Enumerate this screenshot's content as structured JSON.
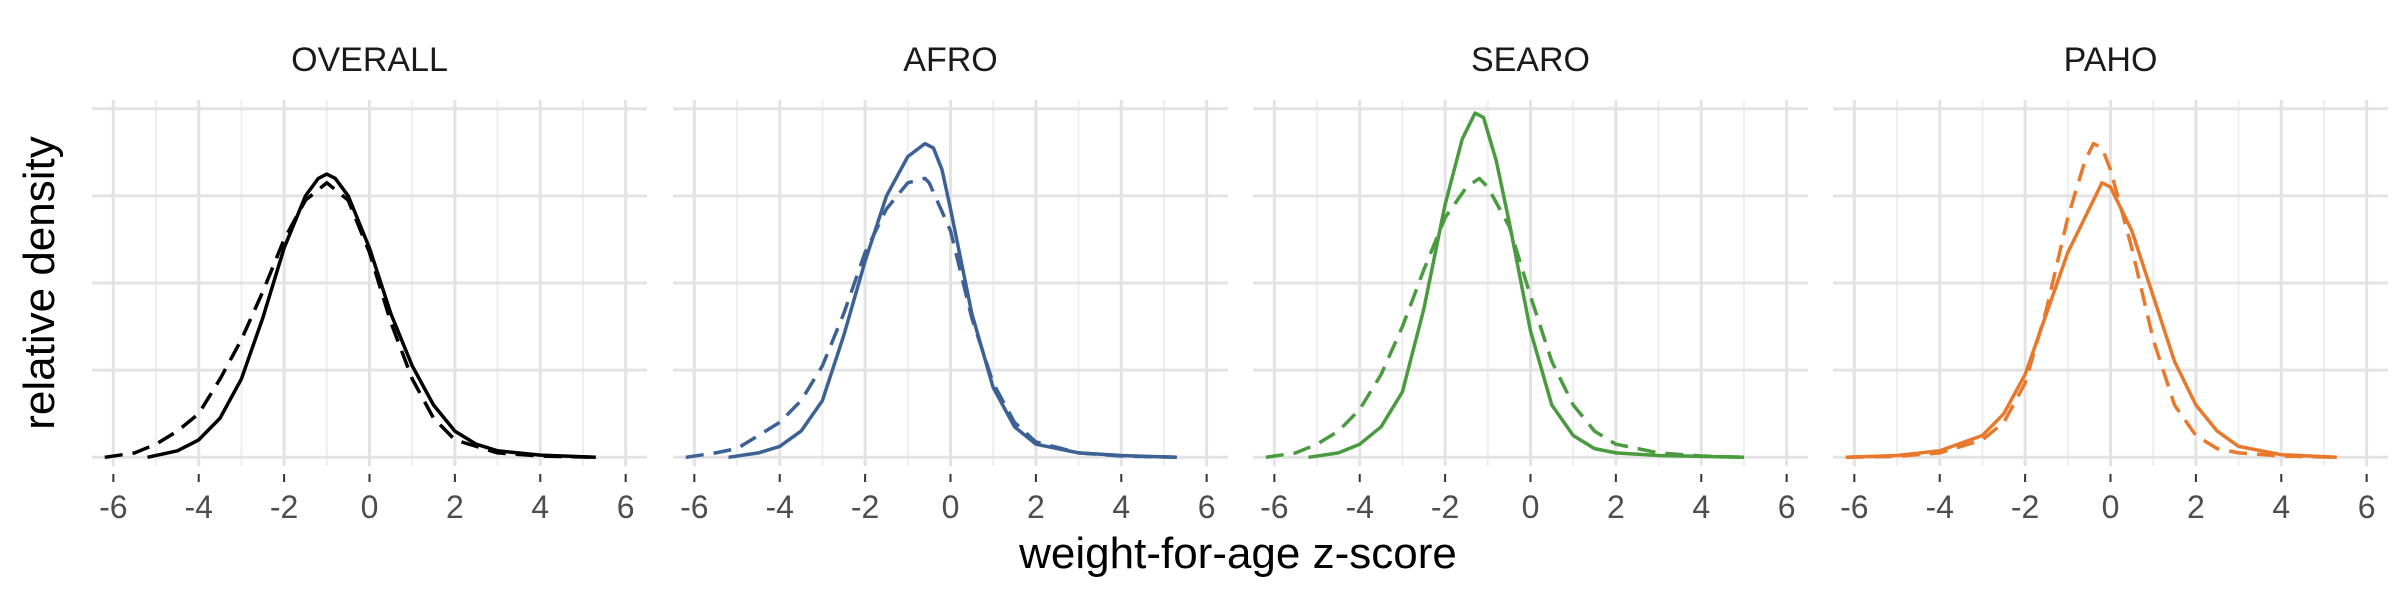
{
  "chart_data": {
    "type": "line",
    "xlabel": "weight-for-age z-score",
    "ylabel": "relative density",
    "xlim": [
      -6.5,
      6.5
    ],
    "x_ticks": [
      -6,
      -4,
      -2,
      0,
      2,
      4,
      6
    ],
    "x_tick_labels": [
      "-6",
      "-4",
      "-2",
      "0",
      "2",
      "4",
      "6"
    ],
    "ylim": [
      -0.02,
      0.82
    ],
    "y_ticks": [
      0,
      0.2,
      0.4,
      0.6,
      0.8
    ],
    "grid": true,
    "line_styles": [
      "solid",
      "dashed"
    ],
    "panels": [
      {
        "title": "OVERALL",
        "color": "#000000",
        "series": [
          {
            "style": "solid",
            "points": [
              [
                -5.2,
                0
              ],
              [
                -4.5,
                0.015
              ],
              [
                -4,
                0.04
              ],
              [
                -3.5,
                0.09
              ],
              [
                -3,
                0.18
              ],
              [
                -2.5,
                0.32
              ],
              [
                -2,
                0.48
              ],
              [
                -1.5,
                0.6
              ],
              [
                -1.2,
                0.64
              ],
              [
                -1,
                0.65
              ],
              [
                -0.8,
                0.64
              ],
              [
                -0.5,
                0.6
              ],
              [
                0,
                0.48
              ],
              [
                0.5,
                0.33
              ],
              [
                1,
                0.21
              ],
              [
                1.5,
                0.12
              ],
              [
                2,
                0.06
              ],
              [
                2.5,
                0.03
              ],
              [
                3,
                0.015
              ],
              [
                4,
                0.005
              ],
              [
                5.3,
                0
              ]
            ]
          },
          {
            "style": "dashed",
            "points": [
              [
                -6.2,
                0
              ],
              [
                -5.5,
                0.01
              ],
              [
                -5,
                0.03
              ],
              [
                -4.5,
                0.06
              ],
              [
                -4,
                0.1
              ],
              [
                -3.5,
                0.18
              ],
              [
                -3,
                0.27
              ],
              [
                -2.5,
                0.38
              ],
              [
                -2,
                0.5
              ],
              [
                -1.5,
                0.59
              ],
              [
                -1,
                0.63
              ],
              [
                -0.5,
                0.59
              ],
              [
                0,
                0.47
              ],
              [
                0.5,
                0.31
              ],
              [
                1,
                0.18
              ],
              [
                1.5,
                0.09
              ],
              [
                2,
                0.04
              ],
              [
                3,
                0.01
              ],
              [
                4,
                0.003
              ],
              [
                5.3,
                0
              ]
            ]
          }
        ]
      },
      {
        "title": "AFRO",
        "color": "#3d6194",
        "series": [
          {
            "style": "solid",
            "points": [
              [
                -5.2,
                0
              ],
              [
                -4.5,
                0.01
              ],
              [
                -4,
                0.025
              ],
              [
                -3.5,
                0.06
              ],
              [
                -3,
                0.13
              ],
              [
                -2.5,
                0.28
              ],
              [
                -2,
                0.45
              ],
              [
                -1.5,
                0.6
              ],
              [
                -1,
                0.69
              ],
              [
                -0.6,
                0.72
              ],
              [
                -0.4,
                0.71
              ],
              [
                -0.2,
                0.66
              ],
              [
                0,
                0.57
              ],
              [
                0.5,
                0.33
              ],
              [
                1,
                0.16
              ],
              [
                1.5,
                0.07
              ],
              [
                2,
                0.03
              ],
              [
                3,
                0.01
              ],
              [
                4,
                0.004
              ],
              [
                5.3,
                0
              ]
            ]
          },
          {
            "style": "dashed",
            "points": [
              [
                -6.2,
                0
              ],
              [
                -5.5,
                0.01
              ],
              [
                -5,
                0.02
              ],
              [
                -4.5,
                0.05
              ],
              [
                -4,
                0.08
              ],
              [
                -3.5,
                0.13
              ],
              [
                -3,
                0.21
              ],
              [
                -2.5,
                0.33
              ],
              [
                -2,
                0.47
              ],
              [
                -1.5,
                0.57
              ],
              [
                -1,
                0.63
              ],
              [
                -0.6,
                0.64
              ],
              [
                -0.5,
                0.63
              ],
              [
                0,
                0.52
              ],
              [
                0.5,
                0.32
              ],
              [
                1,
                0.17
              ],
              [
                1.5,
                0.08
              ],
              [
                2,
                0.035
              ],
              [
                3,
                0.01
              ],
              [
                4,
                0.003
              ],
              [
                5.3,
                0
              ]
            ]
          }
        ]
      },
      {
        "title": "SEARO",
        "color": "#4a9a3f",
        "series": [
          {
            "style": "solid",
            "points": [
              [
                -5.2,
                0
              ],
              [
                -4.5,
                0.01
              ],
              [
                -4,
                0.03
              ],
              [
                -3.5,
                0.07
              ],
              [
                -3,
                0.15
              ],
              [
                -2.5,
                0.34
              ],
              [
                -2,
                0.58
              ],
              [
                -1.6,
                0.73
              ],
              [
                -1.3,
                0.79
              ],
              [
                -1.1,
                0.78
              ],
              [
                -0.8,
                0.68
              ],
              [
                -0.5,
                0.54
              ],
              [
                0,
                0.29
              ],
              [
                0.5,
                0.12
              ],
              [
                1,
                0.05
              ],
              [
                1.5,
                0.02
              ],
              [
                2,
                0.01
              ],
              [
                3,
                0.004
              ],
              [
                4,
                0.002
              ],
              [
                5,
                0
              ]
            ]
          },
          {
            "style": "dashed",
            "points": [
              [
                -6.2,
                0
              ],
              [
                -5.5,
                0.01
              ],
              [
                -5,
                0.03
              ],
              [
                -4.5,
                0.06
              ],
              [
                -4,
                0.11
              ],
              [
                -3.5,
                0.19
              ],
              [
                -3,
                0.3
              ],
              [
                -2.5,
                0.43
              ],
              [
                -2,
                0.55
              ],
              [
                -1.5,
                0.62
              ],
              [
                -1.2,
                0.64
              ],
              [
                -1,
                0.62
              ],
              [
                -0.5,
                0.53
              ],
              [
                0,
                0.37
              ],
              [
                0.5,
                0.22
              ],
              [
                1,
                0.12
              ],
              [
                1.5,
                0.06
              ],
              [
                2,
                0.03
              ],
              [
                3,
                0.01
              ],
              [
                4,
                0.003
              ],
              [
                5,
                0
              ]
            ]
          }
        ]
      },
      {
        "title": "PAHO",
        "color": "#e8792c",
        "series": [
          {
            "style": "solid",
            "points": [
              [
                -6.2,
                0
              ],
              [
                -5,
                0.004
              ],
              [
                -4,
                0.015
              ],
              [
                -3,
                0.05
              ],
              [
                -2.5,
                0.1
              ],
              [
                -2,
                0.19
              ],
              [
                -1.5,
                0.33
              ],
              [
                -1,
                0.47
              ],
              [
                -0.5,
                0.57
              ],
              [
                -0.2,
                0.63
              ],
              [
                0,
                0.62
              ],
              [
                0.5,
                0.52
              ],
              [
                1,
                0.37
              ],
              [
                1.5,
                0.22
              ],
              [
                2,
                0.12
              ],
              [
                2.5,
                0.06
              ],
              [
                3,
                0.025
              ],
              [
                4,
                0.006
              ],
              [
                5.3,
                0
              ]
            ]
          },
          {
            "style": "dashed",
            "points": [
              [
                -6.2,
                0
              ],
              [
                -5,
                0.002
              ],
              [
                -4,
                0.01
              ],
              [
                -3,
                0.04
              ],
              [
                -2.5,
                0.08
              ],
              [
                -2,
                0.17
              ],
              [
                -1.5,
                0.34
              ],
              [
                -1,
                0.55
              ],
              [
                -0.6,
                0.68
              ],
              [
                -0.4,
                0.72
              ],
              [
                -0.2,
                0.71
              ],
              [
                0,
                0.66
              ],
              [
                0.5,
                0.48
              ],
              [
                1,
                0.27
              ],
              [
                1.5,
                0.12
              ],
              [
                2,
                0.05
              ],
              [
                2.5,
                0.02
              ],
              [
                3,
                0.01
              ],
              [
                4,
                0.003
              ],
              [
                5.3,
                0
              ]
            ]
          }
        ]
      }
    ]
  }
}
